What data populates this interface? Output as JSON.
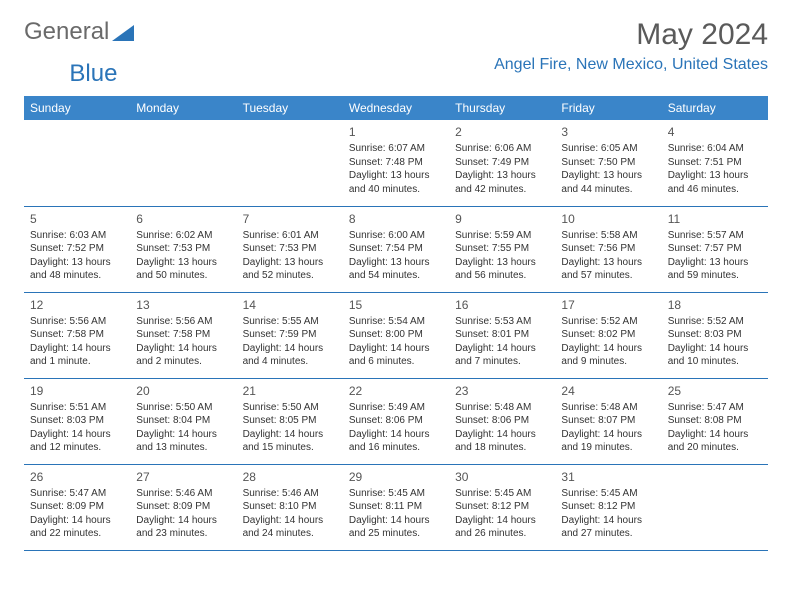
{
  "logo": {
    "text1": "General",
    "text2": "Blue"
  },
  "title": "May 2024",
  "location": "Angel Fire, New Mexico, United States",
  "header_bg": "#3a85c9",
  "header_fg": "#ffffff",
  "accent": "#2a74b8",
  "days": [
    "Sunday",
    "Monday",
    "Tuesday",
    "Wednesday",
    "Thursday",
    "Friday",
    "Saturday"
  ],
  "weeks": [
    [
      null,
      null,
      null,
      {
        "n": "1",
        "sr": "6:07 AM",
        "ss": "7:48 PM",
        "dl": "13 hours and 40 minutes."
      },
      {
        "n": "2",
        "sr": "6:06 AM",
        "ss": "7:49 PM",
        "dl": "13 hours and 42 minutes."
      },
      {
        "n": "3",
        "sr": "6:05 AM",
        "ss": "7:50 PM",
        "dl": "13 hours and 44 minutes."
      },
      {
        "n": "4",
        "sr": "6:04 AM",
        "ss": "7:51 PM",
        "dl": "13 hours and 46 minutes."
      }
    ],
    [
      {
        "n": "5",
        "sr": "6:03 AM",
        "ss": "7:52 PM",
        "dl": "13 hours and 48 minutes."
      },
      {
        "n": "6",
        "sr": "6:02 AM",
        "ss": "7:53 PM",
        "dl": "13 hours and 50 minutes."
      },
      {
        "n": "7",
        "sr": "6:01 AM",
        "ss": "7:53 PM",
        "dl": "13 hours and 52 minutes."
      },
      {
        "n": "8",
        "sr": "6:00 AM",
        "ss": "7:54 PM",
        "dl": "13 hours and 54 minutes."
      },
      {
        "n": "9",
        "sr": "5:59 AM",
        "ss": "7:55 PM",
        "dl": "13 hours and 56 minutes."
      },
      {
        "n": "10",
        "sr": "5:58 AM",
        "ss": "7:56 PM",
        "dl": "13 hours and 57 minutes."
      },
      {
        "n": "11",
        "sr": "5:57 AM",
        "ss": "7:57 PM",
        "dl": "13 hours and 59 minutes."
      }
    ],
    [
      {
        "n": "12",
        "sr": "5:56 AM",
        "ss": "7:58 PM",
        "dl": "14 hours and 1 minute."
      },
      {
        "n": "13",
        "sr": "5:56 AM",
        "ss": "7:58 PM",
        "dl": "14 hours and 2 minutes."
      },
      {
        "n": "14",
        "sr": "5:55 AM",
        "ss": "7:59 PM",
        "dl": "14 hours and 4 minutes."
      },
      {
        "n": "15",
        "sr": "5:54 AM",
        "ss": "8:00 PM",
        "dl": "14 hours and 6 minutes."
      },
      {
        "n": "16",
        "sr": "5:53 AM",
        "ss": "8:01 PM",
        "dl": "14 hours and 7 minutes."
      },
      {
        "n": "17",
        "sr": "5:52 AM",
        "ss": "8:02 PM",
        "dl": "14 hours and 9 minutes."
      },
      {
        "n": "18",
        "sr": "5:52 AM",
        "ss": "8:03 PM",
        "dl": "14 hours and 10 minutes."
      }
    ],
    [
      {
        "n": "19",
        "sr": "5:51 AM",
        "ss": "8:03 PM",
        "dl": "14 hours and 12 minutes."
      },
      {
        "n": "20",
        "sr": "5:50 AM",
        "ss": "8:04 PM",
        "dl": "14 hours and 13 minutes."
      },
      {
        "n": "21",
        "sr": "5:50 AM",
        "ss": "8:05 PM",
        "dl": "14 hours and 15 minutes."
      },
      {
        "n": "22",
        "sr": "5:49 AM",
        "ss": "8:06 PM",
        "dl": "14 hours and 16 minutes."
      },
      {
        "n": "23",
        "sr": "5:48 AM",
        "ss": "8:06 PM",
        "dl": "14 hours and 18 minutes."
      },
      {
        "n": "24",
        "sr": "5:48 AM",
        "ss": "8:07 PM",
        "dl": "14 hours and 19 minutes."
      },
      {
        "n": "25",
        "sr": "5:47 AM",
        "ss": "8:08 PM",
        "dl": "14 hours and 20 minutes."
      }
    ],
    [
      {
        "n": "26",
        "sr": "5:47 AM",
        "ss": "8:09 PM",
        "dl": "14 hours and 22 minutes."
      },
      {
        "n": "27",
        "sr": "5:46 AM",
        "ss": "8:09 PM",
        "dl": "14 hours and 23 minutes."
      },
      {
        "n": "28",
        "sr": "5:46 AM",
        "ss": "8:10 PM",
        "dl": "14 hours and 24 minutes."
      },
      {
        "n": "29",
        "sr": "5:45 AM",
        "ss": "8:11 PM",
        "dl": "14 hours and 25 minutes."
      },
      {
        "n": "30",
        "sr": "5:45 AM",
        "ss": "8:12 PM",
        "dl": "14 hours and 26 minutes."
      },
      {
        "n": "31",
        "sr": "5:45 AM",
        "ss": "8:12 PM",
        "dl": "14 hours and 27 minutes."
      },
      null
    ]
  ],
  "labels": {
    "sunrise": "Sunrise:",
    "sunset": "Sunset:",
    "daylight": "Daylight:"
  }
}
